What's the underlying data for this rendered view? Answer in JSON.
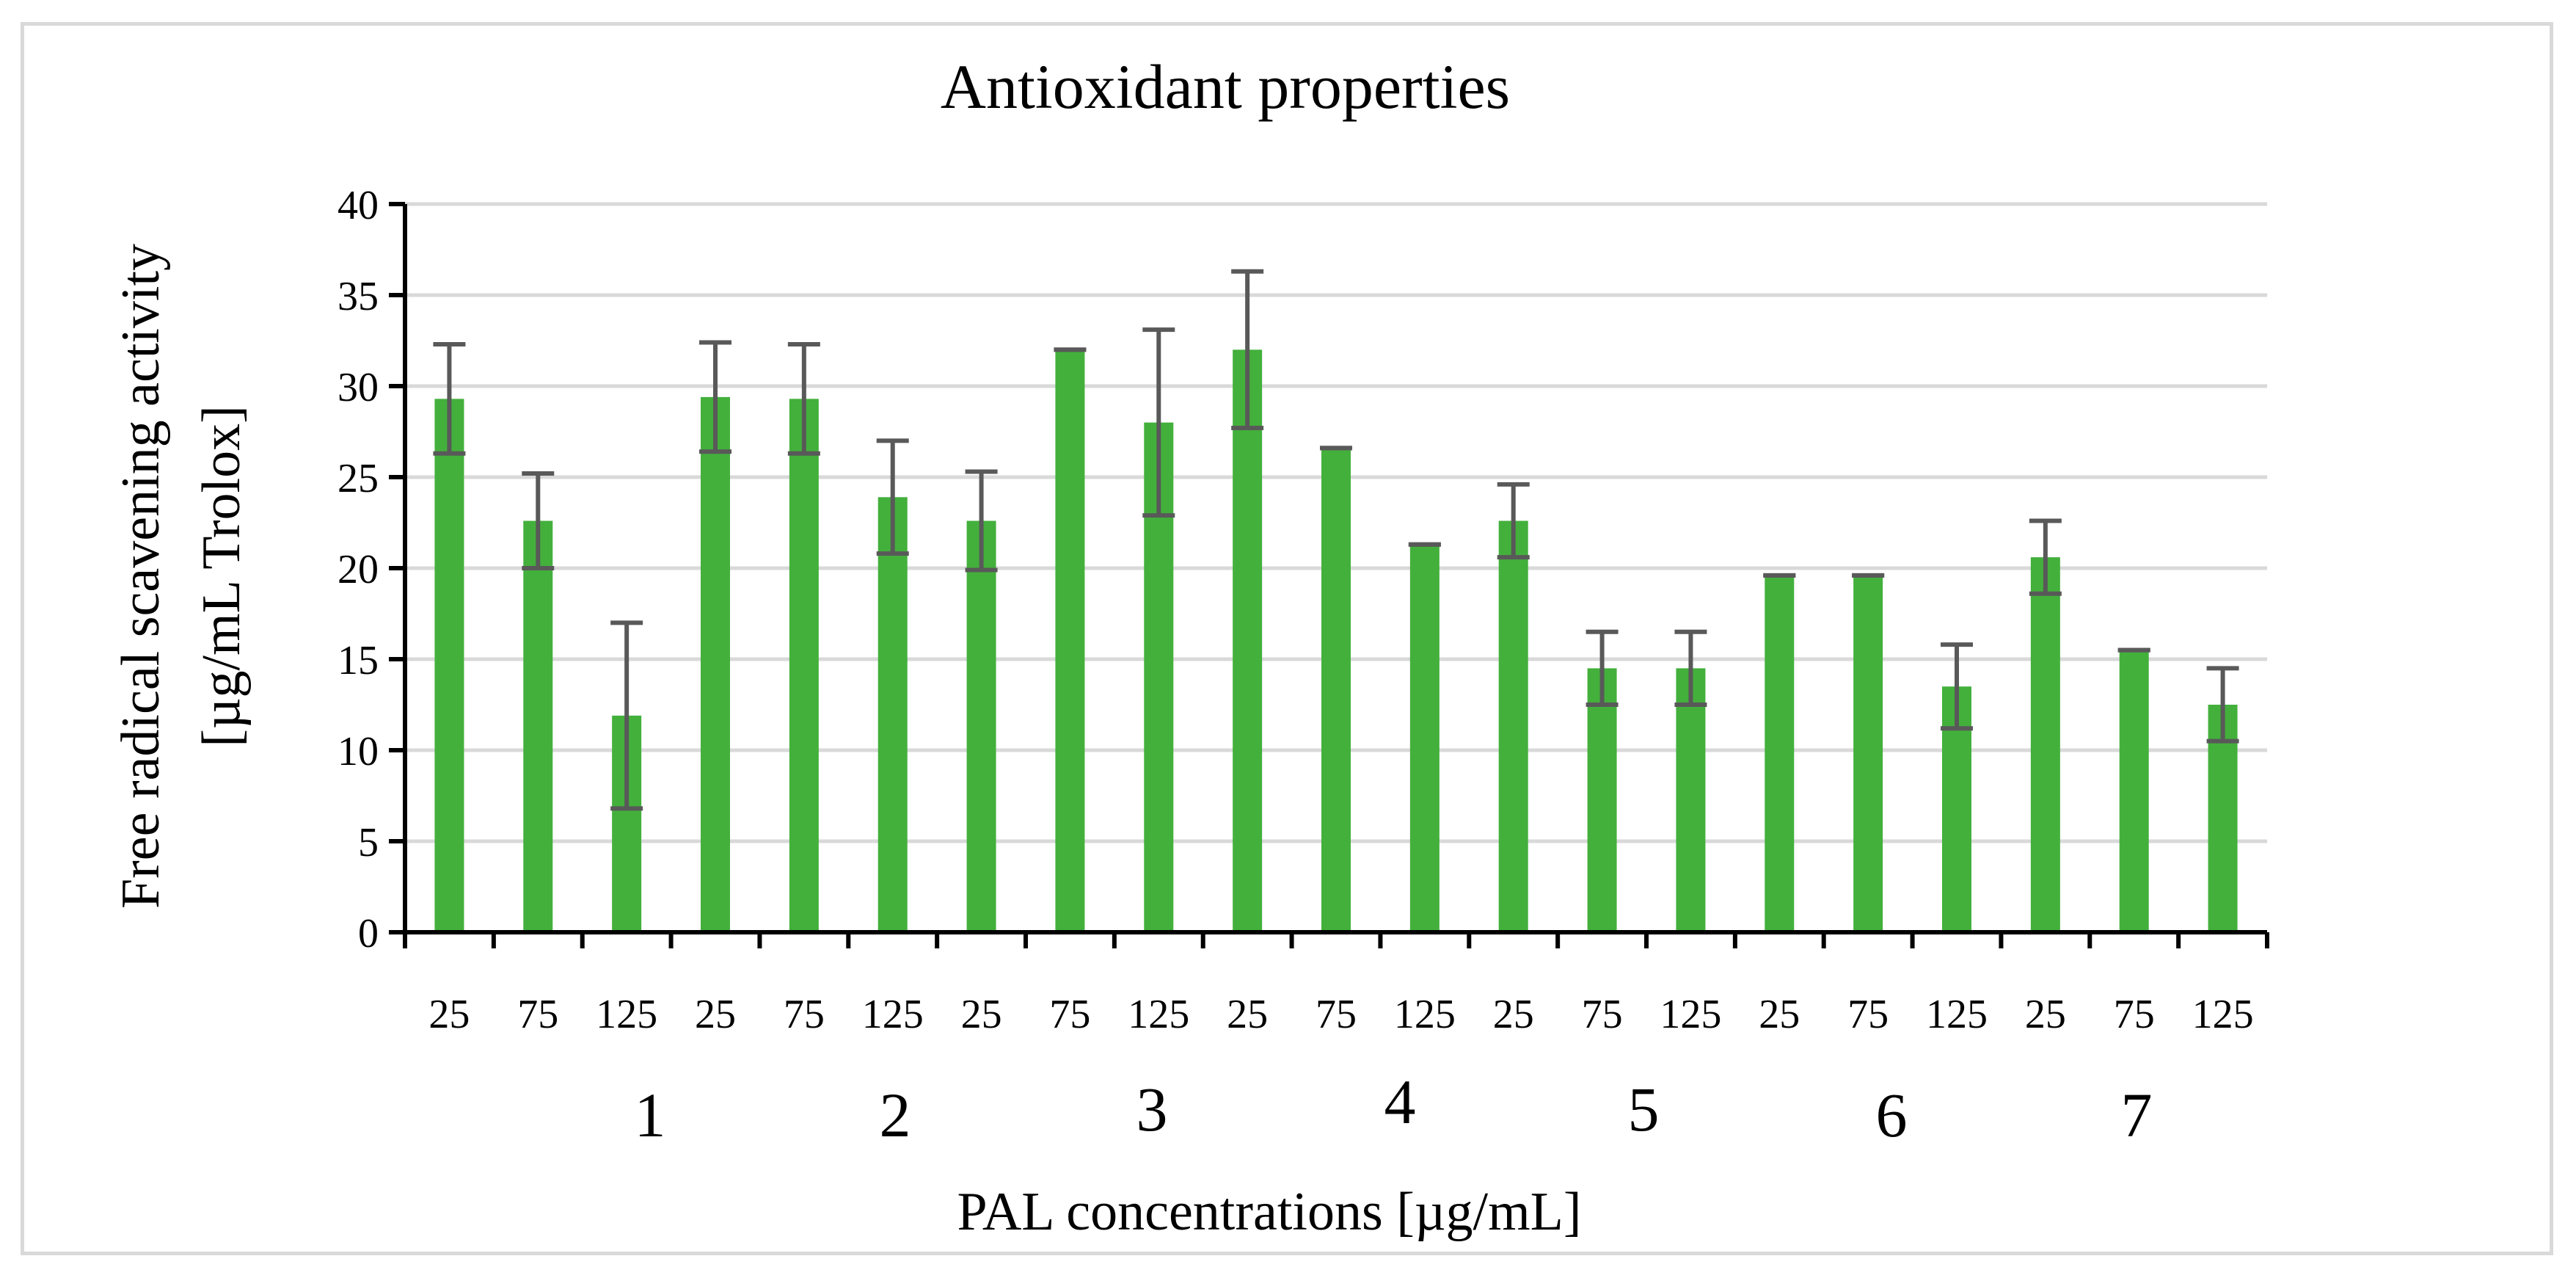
{
  "chart_data": {
    "type": "bar",
    "title": "Antioxidant properties",
    "ylabel_lines": [
      "Free radical scavening activity",
      "[µg/mL Trolox]"
    ],
    "xlabel": "PAL concentrations [µg/mL]",
    "ylim": [
      0,
      40
    ],
    "yticks": [
      0,
      5,
      10,
      15,
      20,
      25,
      30,
      35,
      40
    ],
    "gridlines": true,
    "bar_color": "#43b03c",
    "error_bar_color": "#595959",
    "categories": [
      "25",
      "75",
      "125",
      "25",
      "75",
      "125",
      "25",
      "75",
      "125",
      "25",
      "75",
      "125",
      "25",
      "75",
      "125",
      "25",
      "75",
      "125",
      "25",
      "75",
      "125"
    ],
    "values": [
      29.3,
      22.6,
      11.9,
      29.4,
      29.3,
      23.9,
      22.6,
      32.0,
      28.0,
      32.0,
      26.6,
      21.3,
      22.6,
      14.5,
      14.5,
      19.6,
      19.6,
      13.5,
      20.6,
      15.5,
      12.5
    ],
    "errors": [
      3.0,
      2.6,
      5.1,
      3.0,
      3.0,
      3.1,
      2.7,
      0,
      5.1,
      4.3,
      0,
      0,
      2.0,
      2.0,
      2.0,
      0,
      0,
      2.3,
      2.0,
      0,
      2.0
    ],
    "group_labels": [
      "1",
      "2",
      "3",
      "4",
      "5",
      "6",
      "7"
    ]
  }
}
